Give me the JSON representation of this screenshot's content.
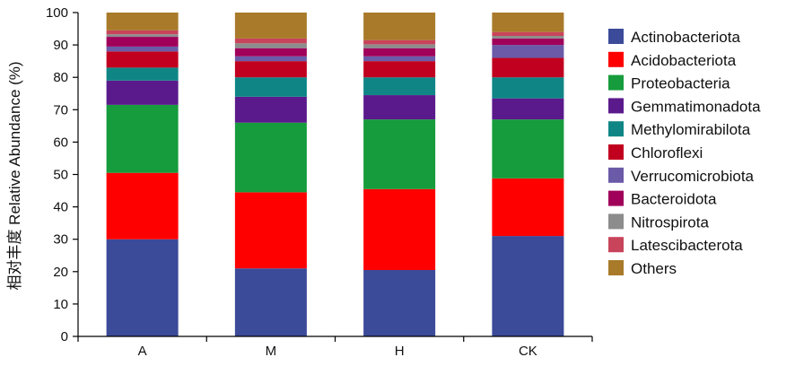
{
  "chart_data": {
    "type": "bar",
    "stacked": true,
    "categories": [
      "A",
      "M",
      "H",
      "CK"
    ],
    "ylabel": "相对丰度 Relative Abundance (%)",
    "ylim": [
      0,
      100
    ],
    "yticks": [
      0,
      10,
      20,
      30,
      40,
      50,
      60,
      70,
      80,
      90,
      100
    ],
    "grid": false,
    "legend_position": "right",
    "series": [
      {
        "name": "Actinobacteriota",
        "color": "#3b4a99",
        "values": [
          30,
          21,
          20.5,
          31
        ]
      },
      {
        "name": "Acidobacteriota",
        "color": "#ff0000",
        "values": [
          20.5,
          23.5,
          25,
          17.8
        ]
      },
      {
        "name": "Proteobacteria",
        "color": "#169c3c",
        "values": [
          21,
          21.5,
          21.5,
          18.2
        ]
      },
      {
        "name": "Gemmatimonadota",
        "color": "#5a1a8c",
        "values": [
          7.5,
          8,
          7.5,
          6.5
        ]
      },
      {
        "name": "Methylomirabilota",
        "color": "#0f8585",
        "values": [
          4,
          6,
          5.5,
          6.5
        ]
      },
      {
        "name": "Chloroflexi",
        "color": "#c1001f",
        "values": [
          5,
          5,
          5,
          6
        ]
      },
      {
        "name": "Verrucomicrobiota",
        "color": "#6a5aa8",
        "values": [
          1.5,
          1.5,
          1.5,
          4
        ]
      },
      {
        "name": "Bacteroidota",
        "color": "#a0005a",
        "values": [
          3,
          2.5,
          2.5,
          2
        ]
      },
      {
        "name": "Nitrospirota",
        "color": "#8c8c8c",
        "values": [
          0.8,
          1.5,
          1.2,
          0.8
        ]
      },
      {
        "name": "Latescibacterota",
        "color": "#c8445a",
        "values": [
          1.2,
          1.5,
          1.3,
          1.2
        ]
      },
      {
        "name": "Others",
        "color": "#a87a2a",
        "values": [
          5.5,
          8,
          8.5,
          6
        ]
      }
    ]
  }
}
